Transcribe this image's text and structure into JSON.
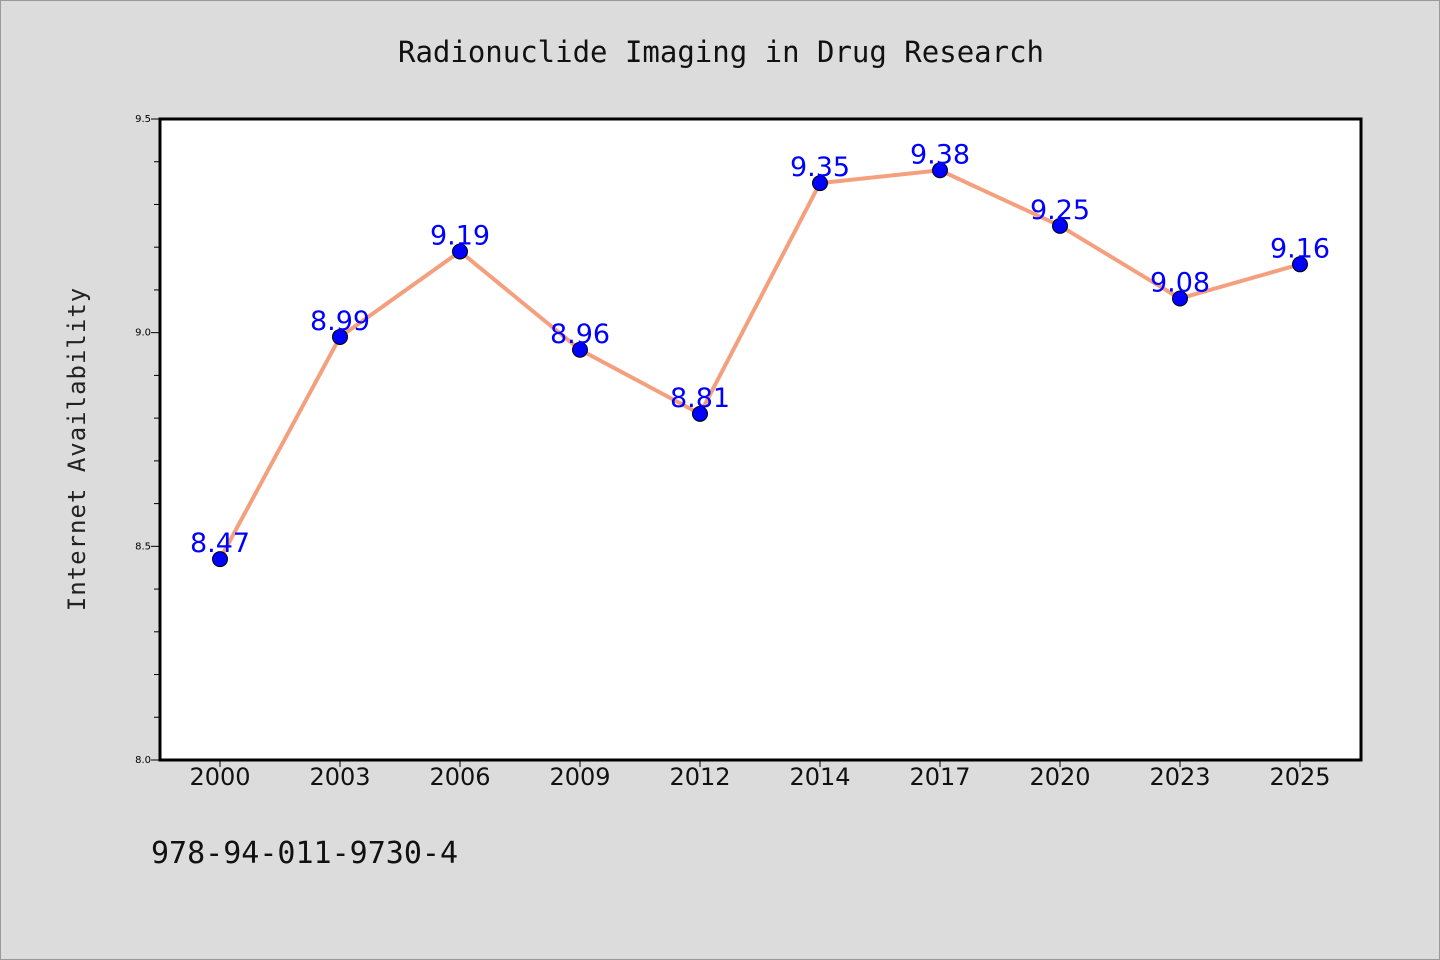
{
  "chart_data": {
    "type": "line",
    "title": "Radionuclide Imaging in Drug Research",
    "xlabel": "",
    "ylabel": "Internet Availability",
    "categories": [
      "2000",
      "2003",
      "2006",
      "2009",
      "2012",
      "2014",
      "2017",
      "2020",
      "2023",
      "2025"
    ],
    "series": [
      {
        "values": [
          8.47,
          8.99,
          9.19,
          8.96,
          8.81,
          9.35,
          9.38,
          9.25,
          9.08,
          9.16
        ]
      }
    ],
    "data_labels": [
      "8.47",
      "8.99",
      "9.19",
      "8.96",
      "8.81",
      "9.35",
      "9.38",
      "9.25",
      "9.08",
      "9.16"
    ],
    "ylim": [
      8.0,
      9.5
    ],
    "y_ticks": [
      "8.0",
      "8.5",
      "9.0",
      "9.5"
    ],
    "grid": false,
    "colors": {
      "line": "#f4a07e",
      "marker": "#0000ff",
      "label": "#0000ff",
      "frame": "#000000",
      "plot_bg": "#ffffff",
      "page_bg": "#dcdcdc"
    }
  },
  "footer": {
    "isbn": "978-94-011-9730-4"
  }
}
